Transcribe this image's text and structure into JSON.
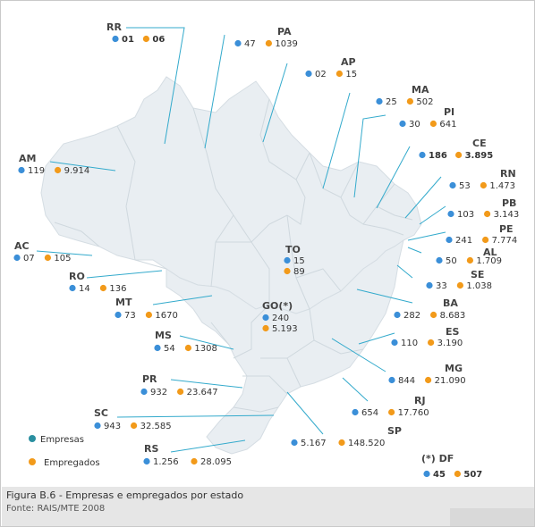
{
  "colors": {
    "empresas": "#3b8fd8",
    "empregados": "#f29a1a",
    "legend_empresas": "#2a8fa0",
    "map_fill": "#e9eef2",
    "map_stroke": "#ffffff",
    "leader": "#33aacc"
  },
  "legend": {
    "empresas": "Empresas",
    "empregados": "Empregados"
  },
  "states": [
    {
      "id": "rr",
      "label": "RR",
      "empresas": "01",
      "empregados": "06",
      "bold": true
    },
    {
      "id": "pa",
      "label": "PA",
      "empresas": "47",
      "empregados": "1039",
      "bold": false
    },
    {
      "id": "ap",
      "label": "AP",
      "empresas": "02",
      "empregados": "15",
      "bold": false
    },
    {
      "id": "ma",
      "label": "MA",
      "empresas": "25",
      "empregados": "502",
      "bold": false
    },
    {
      "id": "pi",
      "label": "PI",
      "empresas": "30",
      "empregados": "641",
      "bold": false
    },
    {
      "id": "ce",
      "label": "CE",
      "empresas": "186",
      "empregados": "3.895",
      "bold": true
    },
    {
      "id": "rn",
      "label": "RN",
      "empresas": "53",
      "empregados": "1.473",
      "bold": false
    },
    {
      "id": "pb",
      "label": "PB",
      "empresas": "103",
      "empregados": "3.143",
      "bold": false
    },
    {
      "id": "pe",
      "label": "PE",
      "empresas": "241",
      "empregados": "7.774",
      "bold": false
    },
    {
      "id": "al",
      "label": "AL",
      "empresas": "50",
      "empregados": "1.709",
      "bold": false
    },
    {
      "id": "se",
      "label": "SE",
      "empresas": "33",
      "empregados": "1.038",
      "bold": false
    },
    {
      "id": "ba",
      "label": "BA",
      "empresas": "282",
      "empregados": "8.683",
      "bold": false
    },
    {
      "id": "es",
      "label": "ES",
      "empresas": "110",
      "empregados": "3.190",
      "bold": false
    },
    {
      "id": "mg",
      "label": "MG",
      "empresas": "844",
      "empregados": "21.090",
      "bold": false
    },
    {
      "id": "rj",
      "label": "RJ",
      "empresas": "654",
      "empregados": "17.760",
      "bold": false
    },
    {
      "id": "sp",
      "label": "SP",
      "empresas": "5.167",
      "empregados": "148.520",
      "bold": false
    },
    {
      "id": "df",
      "label": "(*) DF",
      "empresas": "45",
      "empregados": "507",
      "bold": true
    },
    {
      "id": "go",
      "label": "GO(*)",
      "empresas": "240",
      "empregados": "5.193",
      "bold": false
    },
    {
      "id": "to",
      "label": "TO",
      "empresas": "15",
      "empregados": "89",
      "bold": false
    },
    {
      "id": "am",
      "label": "AM",
      "empresas": "119",
      "empregados": "9.914",
      "bold": false
    },
    {
      "id": "ac",
      "label": "AC",
      "empresas": "07",
      "empregados": "105",
      "bold": false
    },
    {
      "id": "ro",
      "label": "RO",
      "empresas": "14",
      "empregados": "136",
      "bold": false
    },
    {
      "id": "mt",
      "label": "MT",
      "empresas": "73",
      "empregados": "1670",
      "bold": false
    },
    {
      "id": "ms",
      "label": "MS",
      "empresas": "54",
      "empregados": "1308",
      "bold": false
    },
    {
      "id": "pr",
      "label": "PR",
      "empresas": "932",
      "empregados": "23.647",
      "bold": false
    },
    {
      "id": "sc",
      "label": "SC",
      "empresas": "943",
      "empregados": "32.585",
      "bold": false
    },
    {
      "id": "rs",
      "label": "RS",
      "empresas": "1.256",
      "empregados": "28.095",
      "bold": false
    }
  ],
  "caption": {
    "title": "Figura B.6 - Empresas e empregados por estado",
    "source": "Fonte: RAIS/MTE 2008"
  }
}
